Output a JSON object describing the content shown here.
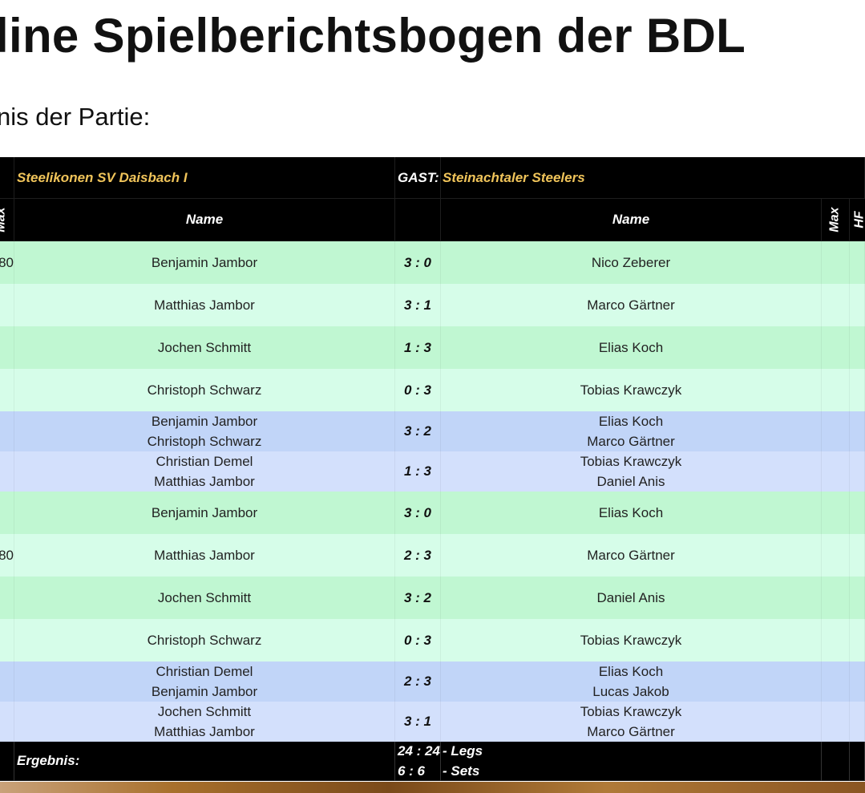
{
  "header": {
    "title": "line Spielberichtsbogen der BDL",
    "subtitle": "nis der Partie:"
  },
  "table": {
    "home_team": "Steelikonen SV Daisbach I",
    "guest_label": "GAST:",
    "guest_team": "Steinachtaler Steelers",
    "columns": {
      "max_left": "Max",
      "name_home": "Name",
      "name_guest": "Name",
      "max": "Max",
      "hf": "HF"
    },
    "rows": [
      {
        "left": "80",
        "home": [
          "Benjamin Jambor"
        ],
        "score": "3 : 0",
        "guest": [
          "Nico Zeberer"
        ]
      },
      {
        "home": [
          "Matthias Jambor"
        ],
        "score": "3 : 1",
        "guest": [
          "Marco Gärtner"
        ]
      },
      {
        "home": [
          "Jochen Schmitt"
        ],
        "score": "1 : 3",
        "guest": [
          "Elias Koch"
        ]
      },
      {
        "home": [
          "Christoph Schwarz"
        ],
        "score": "0 : 3",
        "guest": [
          "Tobias Krawczyk"
        ]
      },
      {
        "home": [
          "Benjamin Jambor",
          "Christoph Schwarz"
        ],
        "score": "3 : 2",
        "guest": [
          "Elias Koch",
          "Marco Gärtner"
        ]
      },
      {
        "home": [
          "Christian Demel",
          "Matthias Jambor"
        ],
        "score": "1 : 3",
        "guest": [
          "Tobias Krawczyk",
          "Daniel Anis"
        ]
      },
      {
        "home": [
          "Benjamin Jambor"
        ],
        "score": "3 : 0",
        "guest": [
          "Elias Koch"
        ]
      },
      {
        "left": "80",
        "home": [
          "Matthias Jambor"
        ],
        "score": "2 : 3",
        "guest": [
          "Marco Gärtner"
        ]
      },
      {
        "home": [
          "Jochen Schmitt"
        ],
        "score": "3 : 2",
        "guest": [
          "Daniel Anis"
        ]
      },
      {
        "home": [
          "Christoph Schwarz"
        ],
        "score": "0 : 3",
        "guest": [
          "Tobias Krawczyk"
        ]
      },
      {
        "home": [
          "Christian Demel",
          "Benjamin Jambor"
        ],
        "score": "2 : 3",
        "guest": [
          "Elias Koch",
          "Lucas Jakob"
        ]
      },
      {
        "home": [
          "Jochen Schmitt",
          "Matthias Jambor"
        ],
        "score": "3 : 1",
        "guest": [
          "Tobias Krawczyk",
          "Marco Gärtner"
        ]
      }
    ],
    "footer": {
      "label": "Ergebnis:",
      "legs": "24 : 24",
      "legs_label": "- Legs",
      "sets": "6 : 6",
      "sets_label": "- Sets"
    }
  }
}
